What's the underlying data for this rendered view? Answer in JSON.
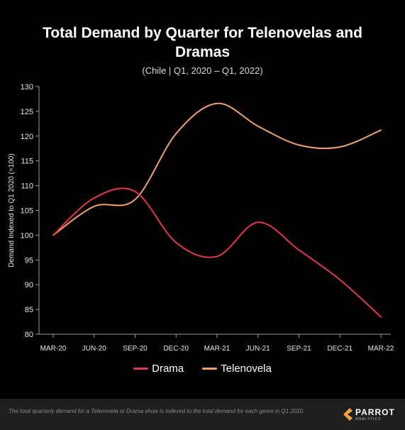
{
  "chart_data": {
    "type": "line",
    "title": "Total Demand by Quarter for Telenovelas and Dramas",
    "subtitle": "(Chile  |  Q1, 2020 – Q1, 2022)",
    "ylabel": "Demand Indexed to Q1 2020 (=100)",
    "xlabel": "",
    "categories": [
      "MAR-20",
      "JUN-20",
      "SEP-20",
      "DEC-20",
      "MAR-21",
      "JUN-21",
      "SEP-21",
      "DEC-21",
      "MAR-22"
    ],
    "ylim": [
      80,
      130
    ],
    "yticks": [
      80,
      85,
      90,
      95,
      100,
      105,
      110,
      115,
      120,
      125,
      130
    ],
    "grid": false,
    "legend_position": "bottom",
    "series": [
      {
        "name": "Drama",
        "color": "#e8344e",
        "values": [
          100,
          107.5,
          108.8,
          98.5,
          95.7,
          102.6,
          97.0,
          91.0,
          83.5
        ]
      },
      {
        "name": "Telenovela",
        "color": "#f5a06a",
        "values": [
          100,
          105.8,
          107.2,
          120.5,
          126.6,
          122.0,
          118.2,
          117.8,
          121.2
        ]
      }
    ]
  },
  "footer": {
    "note": "The total quarterly demand for a Telenovela or Drama show is indexed to the total demand for each genre in Q1 2020.",
    "brand": "PARROT",
    "brand_sub": "ANALYTICS"
  }
}
